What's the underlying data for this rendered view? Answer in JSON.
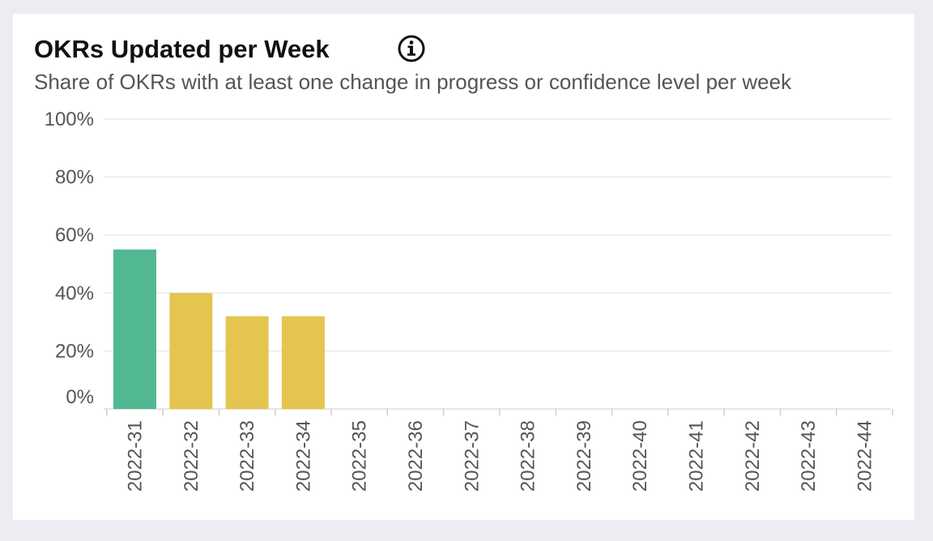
{
  "chart_data": {
    "type": "bar",
    "title": "OKRs Updated per Week",
    "subtitle": "Share of OKRs with at least one change in progress or confidence level per week",
    "categories": [
      "2022-31",
      "2022-32",
      "2022-33",
      "2022-34",
      "2022-35",
      "2022-36",
      "2022-37",
      "2022-38",
      "2022-39",
      "2022-40",
      "2022-41",
      "2022-42",
      "2022-43",
      "2022-44"
    ],
    "values": [
      55,
      40,
      32,
      32,
      0,
      0,
      0,
      0,
      0,
      0,
      0,
      0,
      0,
      0
    ],
    "y_ticks": [
      {
        "value": 0,
        "label": "0%"
      },
      {
        "value": 20,
        "label": "20%"
      },
      {
        "value": 40,
        "label": "40%"
      },
      {
        "value": 60,
        "label": "60%"
      },
      {
        "value": 80,
        "label": "80%"
      },
      {
        "value": 100,
        "label": "100%"
      }
    ],
    "ylim": [
      0,
      100
    ],
    "grid": true,
    "legend": "none",
    "bar_colors": [
      "#52b892",
      "#e3c54f",
      "#e3c54f",
      "#e3c54f"
    ]
  },
  "icons": {
    "info": "info-icon"
  }
}
